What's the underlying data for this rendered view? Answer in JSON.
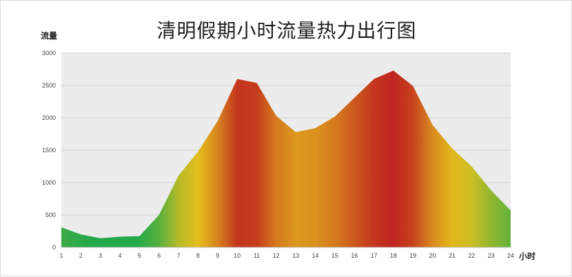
{
  "chart_data": {
    "type": "area",
    "title": "清明假期小时流量热力出行图",
    "ylabel": "流量",
    "xlabel": "小时",
    "x": [
      1,
      2,
      3,
      4,
      5,
      6,
      7,
      8,
      9,
      10,
      11,
      12,
      13,
      14,
      15,
      16,
      17,
      18,
      19,
      20,
      21,
      22,
      23,
      24
    ],
    "values": [
      310,
      200,
      140,
      165,
      175,
      500,
      1110,
      1480,
      1950,
      2600,
      2540,
      2030,
      1780,
      1840,
      2020,
      2310,
      2600,
      2730,
      2490,
      1890,
      1530,
      1250,
      880,
      570
    ],
    "ylim": [
      0,
      3000
    ],
    "yticks": [
      0,
      500,
      1000,
      1500,
      2000,
      2500,
      3000
    ],
    "grid": true,
    "fill": "heat gradient along x: green at low traffic, yellow at medium, red at peaks",
    "colors": {
      "low": "#22a84a",
      "mid": "#e6c21c",
      "high": "#c0251f"
    }
  }
}
